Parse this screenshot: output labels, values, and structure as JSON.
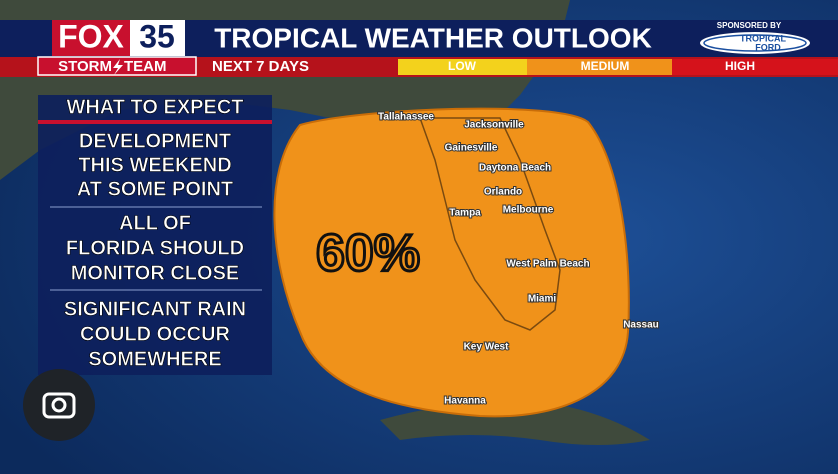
{
  "header": {
    "station": "FOX",
    "channel": "35",
    "team_left": "STORM",
    "team_right": "TEAM",
    "title": "TROPICAL WEATHER OUTLOOK",
    "subtitle": "NEXT 7 DAYS",
    "scale": [
      "LOW",
      "MEDIUM",
      "HIGH"
    ],
    "sponsor_label": "SPONSORED BY",
    "sponsor_top": "TROPICAL",
    "sponsor_bottom": "FORD"
  },
  "panel": {
    "title": "WHAT TO EXPECT",
    "items": [
      [
        "DEVELOPMENT",
        "THIS WEEKEND",
        "AT SOME POINT"
      ],
      [
        "ALL OF",
        "FLORIDA SHOULD",
        "MONITOR CLOSE"
      ],
      [
        "SIGNIFICANT RAIN",
        "COULD OCCUR",
        "SOMEWHERE"
      ]
    ]
  },
  "map": {
    "chance": "60%",
    "cities": [
      "Tallahassee",
      "Jacksonville",
      "Gainesville",
      "Daytona Beach",
      "Orlando",
      "Melbourne",
      "Tampa",
      "West Palm Beach",
      "Miami",
      "Key West",
      "Nassau",
      "Havanna"
    ]
  }
}
